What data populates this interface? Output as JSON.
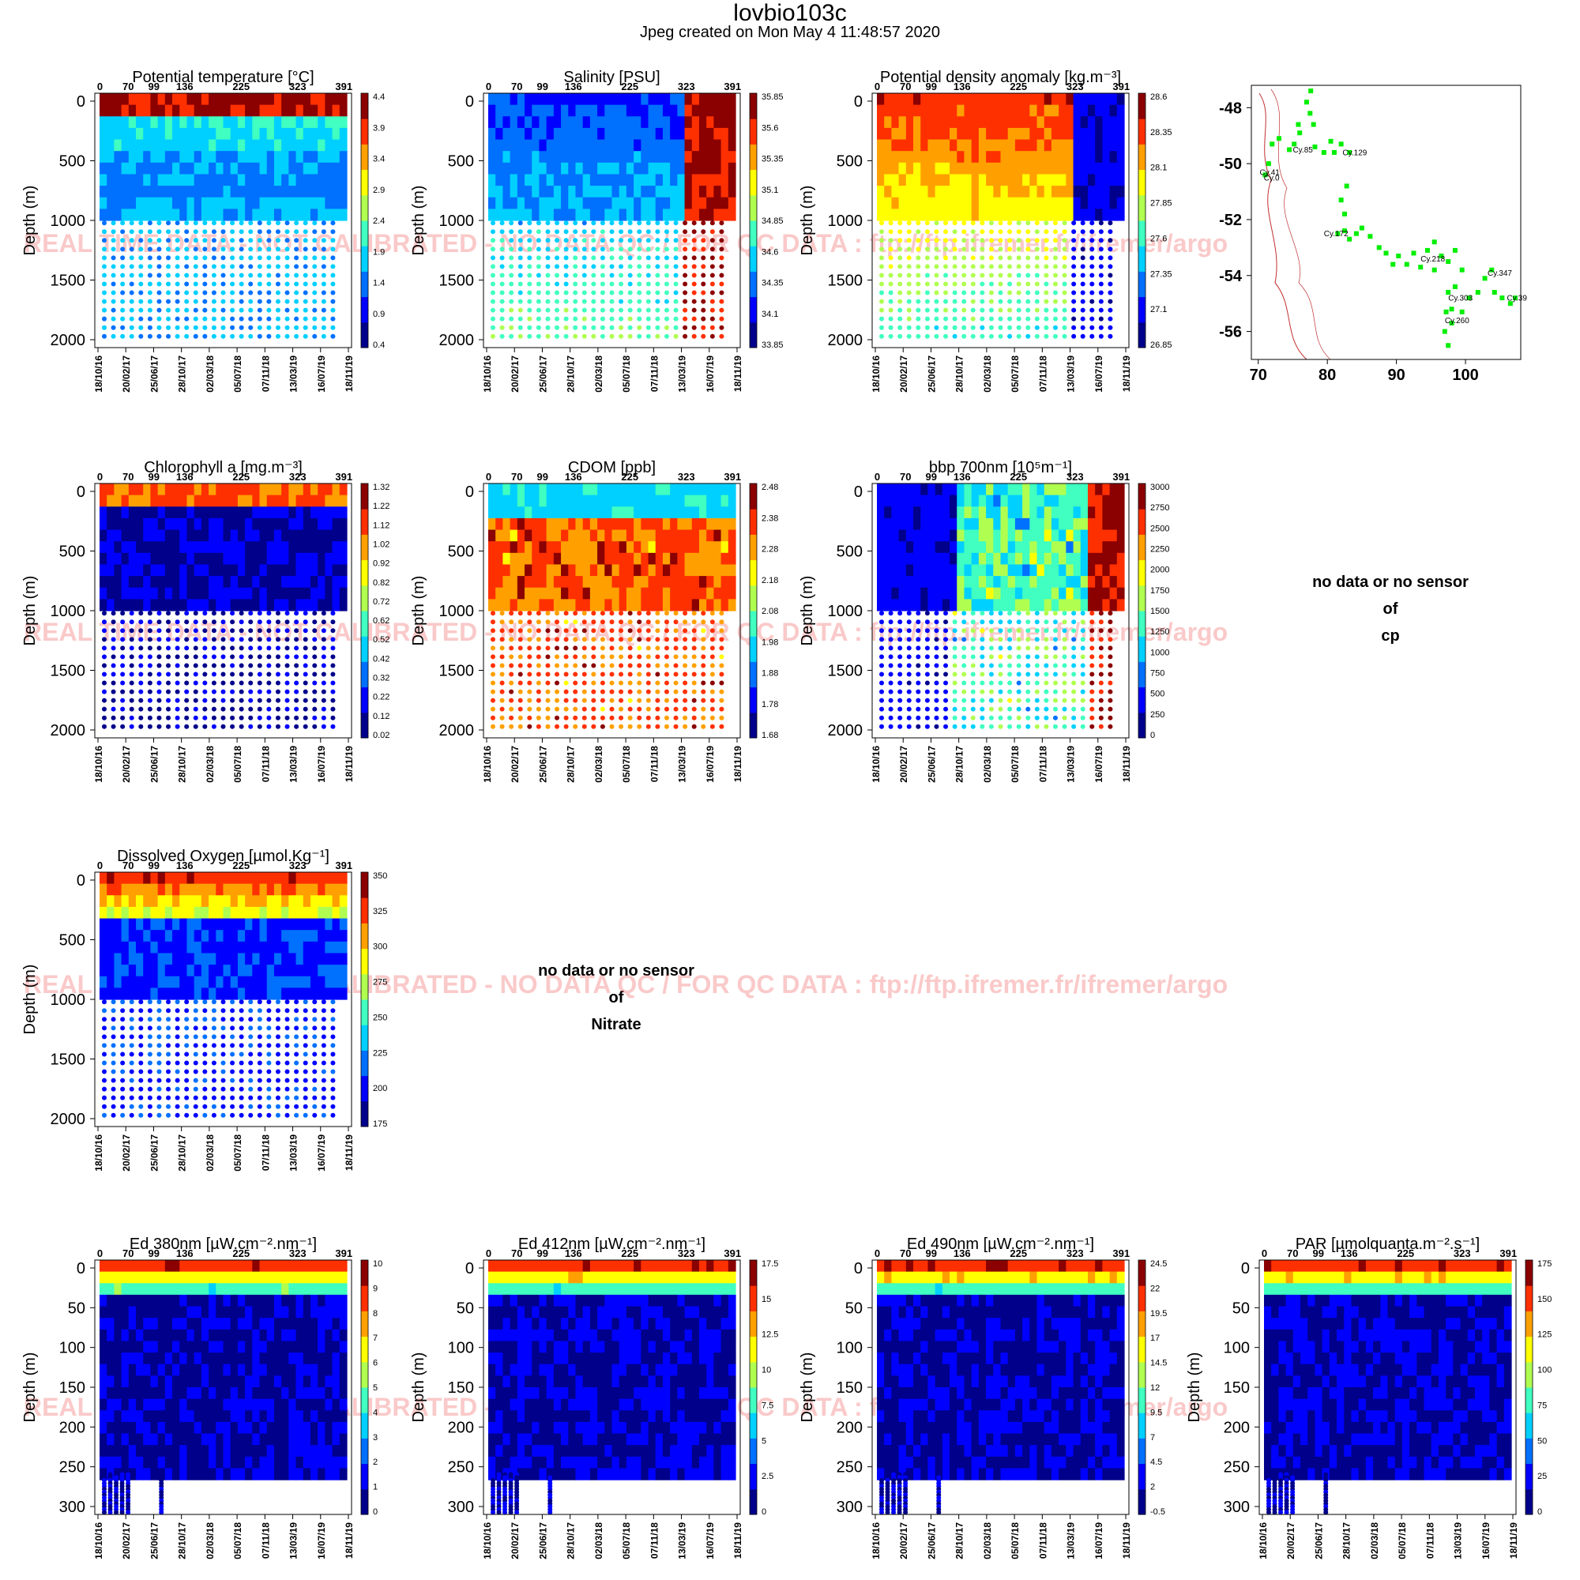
{
  "header": {
    "title": "lovbio103c",
    "subtitle": "Jpeg created on  Mon May  4 11:48:57 2020"
  },
  "watermark": "REAL TIME DATA - NOT CALIBRATED - NO DATA QC   /  FOR QC DATA : ftp://ftp.ifremer.fr/ifremer/argo",
  "no_data": {
    "cp": [
      "no data or no sensor",
      "of",
      "cp"
    ],
    "nitrate": [
      "no data or no sensor",
      "of",
      "Nitrate"
    ]
  },
  "colormap": [
    "#00008b",
    "#0000ff",
    "#0070ff",
    "#00d0ff",
    "#40ffc0",
    "#b0ff50",
    "#ffff00",
    "#ffa000",
    "#ff3000",
    "#8b0000"
  ],
  "chart_data": [
    {
      "type": "heatmap",
      "title": "Potential temperature [°C]",
      "cycle_ticks": [
        "0",
        "70",
        "99",
        "136",
        "225",
        "323",
        "391"
      ],
      "date_ticks": [
        "18/10/16",
        "20/02/17",
        "25/06/17",
        "28/10/17",
        "02/03/18",
        "05/07/18",
        "07/11/18",
        "13/03/19",
        "16/07/19",
        "18/11/19"
      ],
      "ylabel": "Depth (m)",
      "y_ticks": [
        "0",
        "500",
        "1000",
        "1500",
        "2000"
      ],
      "ylim": [
        2000,
        0
      ],
      "colorbar_ticks": [
        "4.4",
        "3.9",
        "3.4",
        "2.9",
        "2.4",
        "1.9",
        "1.4",
        "0.9",
        "0.4"
      ]
    },
    {
      "type": "heatmap",
      "title": "Salinity [PSU]",
      "cycle_ticks": [
        "0",
        "70",
        "99",
        "136",
        "225",
        "323",
        "391"
      ],
      "date_ticks": [
        "18/10/16",
        "20/02/17",
        "25/06/17",
        "28/10/17",
        "02/03/18",
        "05/07/18",
        "07/11/18",
        "13/03/19",
        "16/07/19",
        "18/11/19"
      ],
      "ylabel": "Depth (m)",
      "y_ticks": [
        "0",
        "500",
        "1000",
        "1500",
        "2000"
      ],
      "ylim": [
        2000,
        0
      ],
      "colorbar_ticks": [
        "35.85",
        "35.6",
        "35.35",
        "35.1",
        "34.85",
        "34.6",
        "34.35",
        "34.1",
        "33.85"
      ]
    },
    {
      "type": "heatmap",
      "title": "Potential density anomaly [kg.m⁻³]",
      "cycle_ticks": [
        "0",
        "70",
        "99",
        "136",
        "225",
        "323",
        "391"
      ],
      "date_ticks": [
        "18/10/16",
        "20/02/17",
        "25/06/17",
        "28/10/17",
        "02/03/18",
        "05/07/18",
        "07/11/18",
        "13/03/19",
        "16/07/19",
        "18/11/19"
      ],
      "ylabel": "Depth (m)",
      "y_ticks": [
        "0",
        "500",
        "1000",
        "1500",
        "2000"
      ],
      "ylim": [
        2000,
        0
      ],
      "colorbar_ticks": [
        "28.6",
        "28.35",
        "28.1",
        "27.85",
        "27.6",
        "27.35",
        "27.1",
        "26.85"
      ]
    },
    {
      "type": "scatter",
      "x_ticks": [
        "70",
        "80",
        "90",
        "100"
      ],
      "y_ticks": [
        "-48",
        "-50",
        "-52",
        "-54",
        "-56"
      ],
      "xlim": [
        69,
        108
      ],
      "ylim": [
        -57,
        -47.2
      ],
      "track_color": "#00ee00",
      "track": [
        [
          71,
          -50.4
        ],
        [
          71.5,
          -50
        ],
        [
          72,
          -49.3
        ],
        [
          73,
          -49.1
        ],
        [
          74.5,
          -49.5
        ],
        [
          75.2,
          -49.3
        ],
        [
          75.8,
          -48.6
        ],
        [
          76,
          -48.9
        ],
        [
          77,
          -47.8
        ],
        [
          77.5,
          -48.2
        ],
        [
          77.6,
          -47.4
        ],
        [
          78,
          -48.6
        ],
        [
          78.2,
          -49.4
        ],
        [
          79.5,
          -49.6
        ],
        [
          80.5,
          -49.2
        ],
        [
          81,
          -49.6
        ],
        [
          82,
          -49.3
        ],
        [
          83.2,
          -49.6
        ],
        [
          82.8,
          -50.8
        ],
        [
          82,
          -51.3
        ],
        [
          82.5,
          -51.8
        ],
        [
          81.5,
          -52.5
        ],
        [
          82.5,
          -52.4
        ],
        [
          83.2,
          -52.7
        ],
        [
          84.2,
          -52.5
        ],
        [
          85,
          -52.3
        ],
        [
          86.2,
          -52.6
        ],
        [
          87.5,
          -53
        ],
        [
          88.5,
          -53.2
        ],
        [
          89.5,
          -53.6
        ],
        [
          90.3,
          -53.3
        ],
        [
          91.5,
          -53.6
        ],
        [
          92.5,
          -53.2
        ],
        [
          93.5,
          -53.7
        ],
        [
          94.5,
          -53.1
        ],
        [
          95.5,
          -52.8
        ],
        [
          95.5,
          -53.8
        ],
        [
          96.5,
          -53.3
        ],
        [
          97.5,
          -53.5
        ],
        [
          98.5,
          -53.1
        ],
        [
          99.5,
          -53.8
        ],
        [
          98.5,
          -54.4
        ],
        [
          97.5,
          -54.6
        ],
        [
          97.2,
          -55.3
        ],
        [
          98,
          -55.7
        ],
        [
          97,
          -56
        ],
        [
          97.5,
          -56.5
        ],
        [
          98,
          -55.2
        ],
        [
          99.5,
          -55.3
        ],
        [
          100.5,
          -54.8
        ],
        [
          101.8,
          -54.6
        ],
        [
          102.8,
          -54.1
        ],
        [
          103.8,
          -53.8
        ],
        [
          104.2,
          -54.6
        ],
        [
          105.3,
          -54.8
        ],
        [
          106.5,
          -55
        ],
        [
          107.2,
          -54.8
        ]
      ],
      "labels": [
        {
          "text": "Cy.85",
          "x": 75,
          "y": -49.6
        },
        {
          "text": "Cy.129",
          "x": 82.2,
          "y": -49.7
        },
        {
          "text": "Cy.41",
          "x": 70.2,
          "y": -50.4
        },
        {
          "text": "Cy.0",
          "x": 70.8,
          "y": -50.6
        },
        {
          "text": "Cy.172",
          "x": 79.5,
          "y": -52.6
        },
        {
          "text": "Cy.218",
          "x": 93.5,
          "y": -53.5
        },
        {
          "text": "Cy.347",
          "x": 103.2,
          "y": -54
        },
        {
          "text": "Cy.303",
          "x": 97.5,
          "y": -54.9
        },
        {
          "text": "Cy.39",
          "x": 106,
          "y": -54.9
        },
        {
          "text": "Cy.260",
          "x": 97,
          "y": -55.7
        }
      ]
    },
    {
      "type": "heatmap",
      "title": "Chlorophyll a [mg.m⁻³]",
      "cycle_ticks": [
        "0",
        "70",
        "99",
        "136",
        "225",
        "323",
        "391"
      ],
      "date_ticks": [
        "18/10/16",
        "20/02/17",
        "25/06/17",
        "28/10/17",
        "02/03/18",
        "05/07/18",
        "07/11/18",
        "13/03/19",
        "16/07/19",
        "18/11/19"
      ],
      "ylabel": "Depth (m)",
      "y_ticks": [
        "0",
        "500",
        "1000",
        "1500",
        "2000"
      ],
      "ylim": [
        2000,
        0
      ],
      "colorbar_ticks": [
        "1.32",
        "1.22",
        "1.12",
        "1.02",
        "0.92",
        "0.82",
        "0.72",
        "0.62",
        "0.52",
        "0.42",
        "0.32",
        "0.22",
        "0.12",
        "0.02"
      ]
    },
    {
      "type": "heatmap",
      "title": "CDOM  [ppb]",
      "cycle_ticks": [
        "0",
        "70",
        "99",
        "136",
        "225",
        "323",
        "391"
      ],
      "date_ticks": [
        "18/10/16",
        "20/02/17",
        "25/06/17",
        "28/10/17",
        "02/03/18",
        "05/07/18",
        "07/11/18",
        "13/03/19",
        "16/07/19",
        "18/11/19"
      ],
      "ylabel": "Depth (m)",
      "y_ticks": [
        "0",
        "500",
        "1000",
        "1500",
        "2000"
      ],
      "ylim": [
        2000,
        0
      ],
      "colorbar_ticks": [
        "2.48",
        "2.38",
        "2.28",
        "2.18",
        "2.08",
        "1.98",
        "1.88",
        "1.78",
        "1.68"
      ]
    },
    {
      "type": "heatmap",
      "title": "bbp 700nm [10⁵m⁻¹]",
      "cycle_ticks": [
        "0",
        "70",
        "99",
        "136",
        "225",
        "323",
        "391"
      ],
      "date_ticks": [
        "18/10/16",
        "20/02/17",
        "25/06/17",
        "28/10/17",
        "02/03/18",
        "05/07/18",
        "07/11/18",
        "13/03/19",
        "16/07/19",
        "18/11/19"
      ],
      "ylabel": "Depth (m)",
      "y_ticks": [
        "0",
        "500",
        "1000",
        "1500",
        "2000"
      ],
      "ylim": [
        2000,
        0
      ],
      "colorbar_ticks": [
        "3000",
        "2750",
        "2500",
        "2250",
        "2000",
        "1750",
        "1500",
        "1250",
        "1000",
        "750",
        "500",
        "250",
        "0"
      ]
    },
    {
      "type": "heatmap",
      "title": "Dissolved Oxygen [µmol.Kg⁻¹]",
      "cycle_ticks": [
        "0",
        "70",
        "99",
        "136",
        "225",
        "323",
        "391"
      ],
      "date_ticks": [
        "18/10/16",
        "20/02/17",
        "25/06/17",
        "28/10/17",
        "02/03/18",
        "05/07/18",
        "07/11/18",
        "13/03/19",
        "16/07/19",
        "18/11/19"
      ],
      "ylabel": "Depth (m)",
      "y_ticks": [
        "0",
        "500",
        "1000",
        "1500",
        "2000"
      ],
      "ylim": [
        2000,
        0
      ],
      "colorbar_ticks": [
        "350",
        "325",
        "300",
        "275",
        "250",
        "225",
        "200",
        "175"
      ]
    },
    {
      "type": "heatmap",
      "title": "Ed 380nm [µW.cm⁻².nm⁻¹]",
      "cycle_ticks": [
        "0",
        "70",
        "99",
        "136",
        "225",
        "323",
        "391"
      ],
      "date_ticks": [
        "18/10/16",
        "20/02/17",
        "25/06/17",
        "28/10/17",
        "02/03/18",
        "05/07/18",
        "07/11/18",
        "13/03/19",
        "16/07/19",
        "18/11/19"
      ],
      "ylabel": "Depth (m)",
      "y_ticks": [
        "0",
        "50",
        "100",
        "150",
        "200",
        "250",
        "300"
      ],
      "ylim": [
        300,
        0
      ],
      "colorbar_ticks": [
        "10",
        "9",
        "8",
        "7",
        "6",
        "5",
        "4",
        "3",
        "2",
        "1",
        "0"
      ]
    },
    {
      "type": "heatmap",
      "title": "Ed 412nm [µW.cm⁻².nm⁻¹]",
      "cycle_ticks": [
        "0",
        "70",
        "99",
        "136",
        "225",
        "323",
        "391"
      ],
      "date_ticks": [
        "18/10/16",
        "20/02/17",
        "25/06/17",
        "28/10/17",
        "02/03/18",
        "05/07/18",
        "07/11/18",
        "13/03/19",
        "16/07/19",
        "18/11/19"
      ],
      "ylabel": "Depth (m)",
      "y_ticks": [
        "0",
        "50",
        "100",
        "150",
        "200",
        "250",
        "300"
      ],
      "ylim": [
        300,
        0
      ],
      "colorbar_ticks": [
        "17.5",
        "15",
        "12.5",
        "10",
        "7.5",
        "5",
        "2.5",
        "0"
      ]
    },
    {
      "type": "heatmap",
      "title": "Ed 490nm [µW.cm⁻².nm⁻¹]",
      "cycle_ticks": [
        "0",
        "70",
        "99",
        "136",
        "225",
        "323",
        "391"
      ],
      "date_ticks": [
        "18/10/16",
        "20/02/17",
        "25/06/17",
        "28/10/17",
        "02/03/18",
        "05/07/18",
        "07/11/18",
        "13/03/19",
        "16/07/19",
        "18/11/19"
      ],
      "ylabel": "Depth (m)",
      "y_ticks": [
        "0",
        "50",
        "100",
        "150",
        "200",
        "250",
        "300"
      ],
      "ylim": [
        300,
        0
      ],
      "colorbar_ticks": [
        "24.5",
        "22",
        "19.5",
        "17",
        "14.5",
        "12",
        "9.5",
        "7",
        "4.5",
        "2",
        "-0.5"
      ]
    },
    {
      "type": "heatmap",
      "title": "PAR [µmolquanta.m⁻².s⁻¹]",
      "cycle_ticks": [
        "0",
        "70",
        "99",
        "136",
        "225",
        "323",
        "391"
      ],
      "date_ticks": [
        "18/10/16",
        "20/02/17",
        "25/06/17",
        "28/10/17",
        "02/03/18",
        "05/07/18",
        "07/11/18",
        "13/03/19",
        "16/07/19",
        "18/11/19"
      ],
      "ylabel": "Depth (m)",
      "y_ticks": [
        "0",
        "50",
        "100",
        "150",
        "200",
        "250",
        "300"
      ],
      "ylim": [
        300,
        0
      ],
      "colorbar_ticks": [
        "175",
        "150",
        "125",
        "100",
        "75",
        "50",
        "25",
        "0"
      ]
    }
  ]
}
